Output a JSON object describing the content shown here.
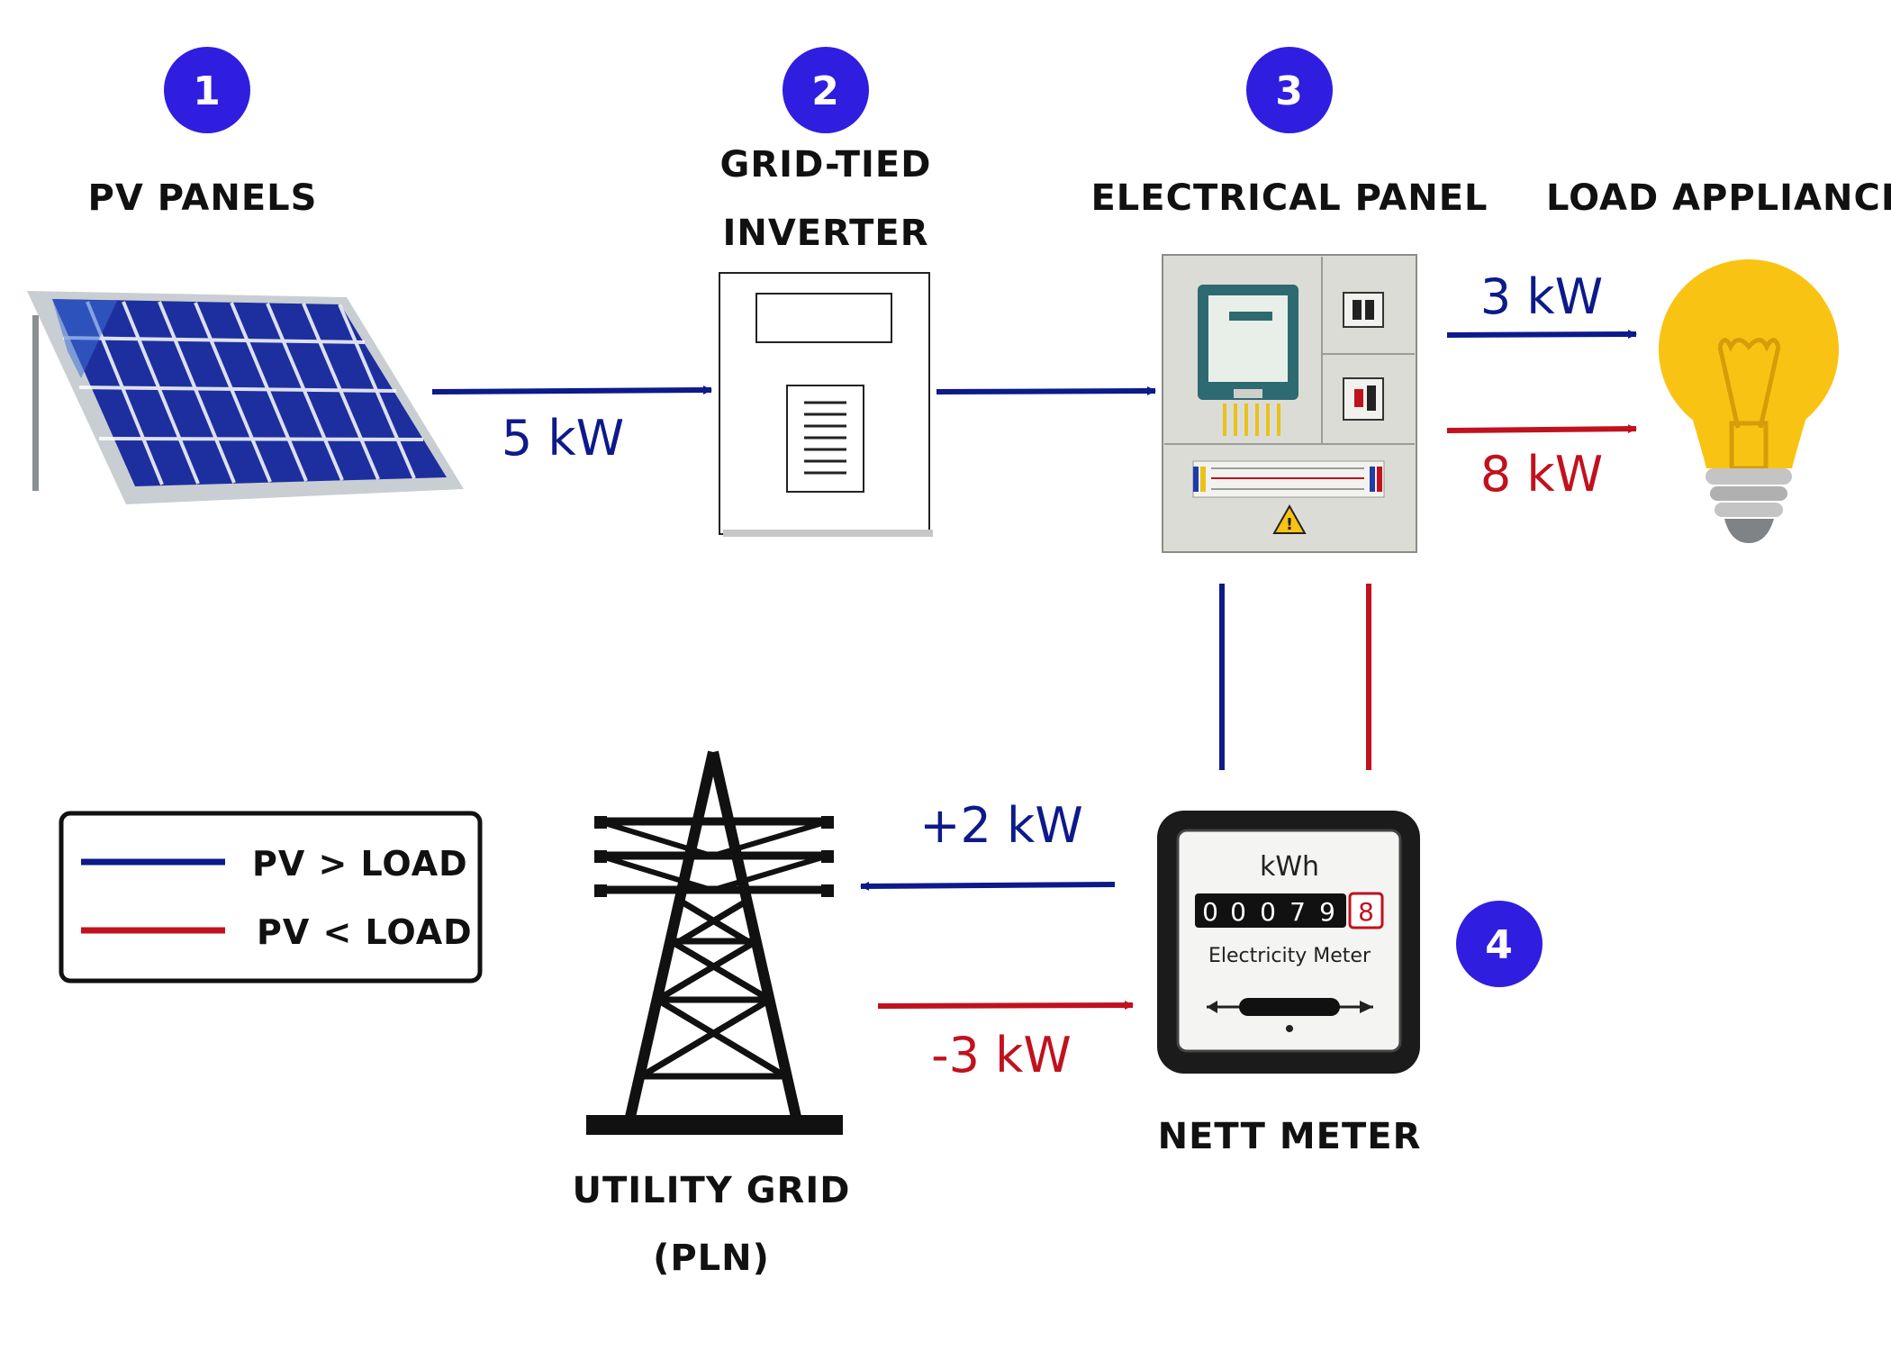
{
  "steps": [
    {
      "number": "1",
      "label": "PV PANELS"
    },
    {
      "number": "2",
      "label_line1": "GRID-TIED",
      "label_line2": "INVERTER"
    },
    {
      "number": "3",
      "label": "ELECTRICAL PANEL"
    },
    {
      "number": "4",
      "label": "NETT METER"
    }
  ],
  "load": {
    "label": "LOAD APPLIANCES"
  },
  "grid": {
    "label_line1": "UTILITY GRID",
    "label_line2": "(PLN)"
  },
  "flows": {
    "pv_to_inverter": "5 kW",
    "panel_to_load_surplus": "3 kW",
    "panel_to_load_deficit": "8 kW",
    "meter_to_grid": "+2 kW",
    "grid_to_meter": "-3 kW"
  },
  "meter": {
    "unit": "kWh",
    "digits": [
      "0",
      "0",
      "0",
      "7",
      "9"
    ],
    "last_digit": "8",
    "caption": "Electricity Meter"
  },
  "legend": {
    "items": [
      {
        "label": "PV > LOAD",
        "color": "#0c1a8a"
      },
      {
        "label": "PV < LOAD",
        "color": "#c0121e"
      }
    ]
  },
  "colors": {
    "badge": "#2f1ee0",
    "surplus": "#0c1a8a",
    "deficit": "#c0121e",
    "bulb": "#f9c313"
  }
}
